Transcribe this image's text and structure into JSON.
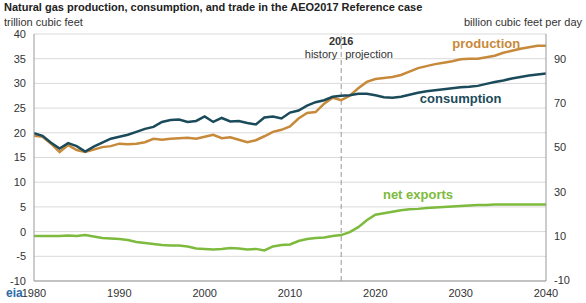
{
  "chart_data": {
    "type": "line",
    "title": "Natural gas production, consumption, and trade in the AEO2017 Reference case",
    "y_label": "trillion cubic feet",
    "y2_label": "billion cubic feet per day",
    "source": "eia",
    "annotations": {
      "x": 2016,
      "label": "2016",
      "before": "history",
      "after": "projection"
    },
    "x": [
      1980,
      1981,
      1982,
      1983,
      1984,
      1985,
      1986,
      1987,
      1988,
      1989,
      1990,
      1991,
      1992,
      1993,
      1994,
      1995,
      1996,
      1997,
      1998,
      1999,
      2000,
      2001,
      2002,
      2003,
      2004,
      2005,
      2006,
      2007,
      2008,
      2009,
      2010,
      2011,
      2012,
      2013,
      2014,
      2015,
      2016,
      2017,
      2018,
      2019,
      2020,
      2021,
      2022,
      2023,
      2024,
      2025,
      2026,
      2027,
      2028,
      2029,
      2030,
      2031,
      2032,
      2033,
      2034,
      2035,
      2036,
      2037,
      2038,
      2039,
      2040
    ],
    "series": [
      {
        "name": "production",
        "color": "#c7893a",
        "values": [
          19.4,
          19.2,
          17.8,
          16.1,
          17.5,
          16.5,
          16.1,
          16.6,
          17.1,
          17.3,
          17.8,
          17.7,
          17.8,
          18.1,
          18.8,
          18.6,
          18.8,
          18.9,
          19.0,
          18.8,
          19.2,
          19.6,
          18.9,
          19.1,
          18.6,
          18.1,
          18.5,
          19.3,
          20.2,
          20.6,
          21.3,
          22.9,
          24.0,
          24.2,
          25.9,
          27.1,
          26.6,
          27.5,
          29.0,
          30.3,
          30.9,
          31.1,
          31.3,
          31.7,
          32.4,
          33.1,
          33.5,
          33.9,
          34.2,
          34.5,
          34.9,
          35.0,
          35.0,
          35.3,
          35.6,
          36.2,
          36.6,
          37.0,
          37.3,
          37.6,
          37.6
        ]
      },
      {
        "name": "consumption",
        "color": "#1b4b5a",
        "values": [
          19.9,
          19.4,
          18.0,
          16.8,
          17.9,
          17.3,
          16.2,
          17.2,
          18.0,
          18.8,
          19.2,
          19.6,
          20.2,
          20.8,
          21.2,
          22.2,
          22.6,
          22.7,
          22.2,
          22.4,
          23.3,
          22.2,
          23.0,
          22.3,
          22.4,
          22.0,
          21.7,
          23.1,
          23.3,
          22.9,
          24.1,
          24.5,
          25.5,
          26.2,
          26.6,
          27.3,
          27.5,
          27.6,
          27.9,
          27.9,
          27.6,
          27.2,
          27.1,
          27.3,
          27.7,
          28.1,
          28.4,
          28.6,
          28.8,
          29.0,
          29.2,
          29.3,
          29.5,
          29.9,
          30.3,
          30.6,
          31.0,
          31.3,
          31.6,
          31.8,
          32.0
        ]
      },
      {
        "name": "net exports",
        "color": "#7dba3d",
        "values": [
          -0.9,
          -0.9,
          -0.9,
          -0.9,
          -0.8,
          -0.9,
          -0.7,
          -1.0,
          -1.3,
          -1.4,
          -1.5,
          -1.7,
          -2.1,
          -2.3,
          -2.5,
          -2.7,
          -2.8,
          -2.8,
          -3.0,
          -3.4,
          -3.5,
          -3.6,
          -3.5,
          -3.3,
          -3.4,
          -3.6,
          -3.5,
          -3.8,
          -3.0,
          -2.7,
          -2.6,
          -1.9,
          -1.5,
          -1.3,
          -1.2,
          -0.9,
          -0.7,
          -0.1,
          0.9,
          2.3,
          3.4,
          3.7,
          4.0,
          4.3,
          4.5,
          4.6,
          4.8,
          4.9,
          5.0,
          5.1,
          5.2,
          5.3,
          5.4,
          5.4,
          5.5,
          5.5,
          5.5,
          5.5,
          5.5,
          5.5,
          5.5
        ]
      }
    ],
    "xlim": [
      1980,
      2040
    ],
    "xticks": [
      1980,
      1990,
      2000,
      2010,
      2020,
      2030,
      2040
    ],
    "ylim": [
      -10,
      40
    ],
    "yticks": [
      -10,
      -5,
      0,
      5,
      10,
      15,
      20,
      25,
      30,
      35,
      40
    ],
    "y2lim": [
      -10.5,
      101.5
    ],
    "y2ticks": [
      -10,
      10,
      30,
      50,
      70,
      90
    ],
    "grid": true
  }
}
